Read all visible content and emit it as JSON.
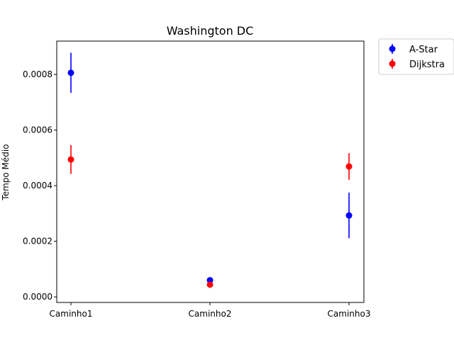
{
  "chart_data": {
    "type": "scatter",
    "title": "Washington DC",
    "xlabel": "",
    "ylabel": "Tempo Médio",
    "categories": [
      "Caminho1",
      "Caminho2",
      "Caminho3"
    ],
    "ylim": [
      -2e-05,
      0.00092
    ],
    "yticks": [
      "0.0000",
      "0.0002",
      "0.0004",
      "0.0006",
      "0.0008"
    ],
    "grid": false,
    "legend_position": "outside-top-right",
    "series": [
      {
        "name": "A-Star",
        "color": "#0000ff",
        "values": [
          0.000806,
          6e-05,
          0.000293
        ],
        "error": [
          7.2e-05,
          5e-06,
          8.2e-05
        ]
      },
      {
        "name": "Dijkstra",
        "color": "#ff0000",
        "values": [
          0.000494,
          4.4e-05,
          0.000469
        ],
        "error": [
          5.2e-05,
          4e-06,
          4.8e-05
        ]
      }
    ]
  }
}
